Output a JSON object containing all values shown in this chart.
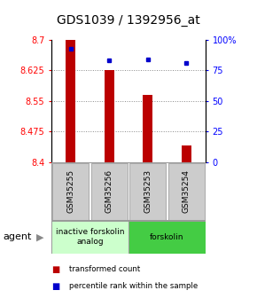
{
  "title": "GDS1039 / 1392956_at",
  "samples": [
    "GSM35255",
    "GSM35256",
    "GSM35253",
    "GSM35254"
  ],
  "bar_values": [
    8.7,
    8.625,
    8.565,
    8.44
  ],
  "dot_values": [
    93,
    83,
    84,
    81
  ],
  "ylim_left": [
    8.4,
    8.7
  ],
  "ylim_right": [
    0,
    100
  ],
  "yticks_left": [
    8.4,
    8.475,
    8.55,
    8.625,
    8.7
  ],
  "ytick_labels_left": [
    "8.4",
    "8.475",
    "8.55",
    "8.625",
    "8.7"
  ],
  "yticks_right": [
    0,
    25,
    50,
    75,
    100
  ],
  "ytick_labels_right": [
    "0",
    "25",
    "50",
    "75",
    "100%"
  ],
  "bar_color": "#bb0000",
  "dot_color": "#0000cc",
  "bar_width": 0.25,
  "groups": [
    {
      "label": "inactive forskolin\nanalog",
      "samples": [
        0,
        1
      ],
      "color": "#ccffcc",
      "edge_color": "#999999"
    },
    {
      "label": "forskolin",
      "samples": [
        2,
        3
      ],
      "color": "#44cc44",
      "edge_color": "#999999"
    }
  ],
  "agent_label": "agent",
  "legend": [
    {
      "color": "#bb0000",
      "label": "transformed count"
    },
    {
      "color": "#0000cc",
      "label": "percentile rank within the sample"
    }
  ],
  "grid_color": "#888888",
  "sample_box_color": "#cccccc",
  "title_fontsize": 10,
  "tick_fontsize": 7,
  "label_fontsize": 7
}
